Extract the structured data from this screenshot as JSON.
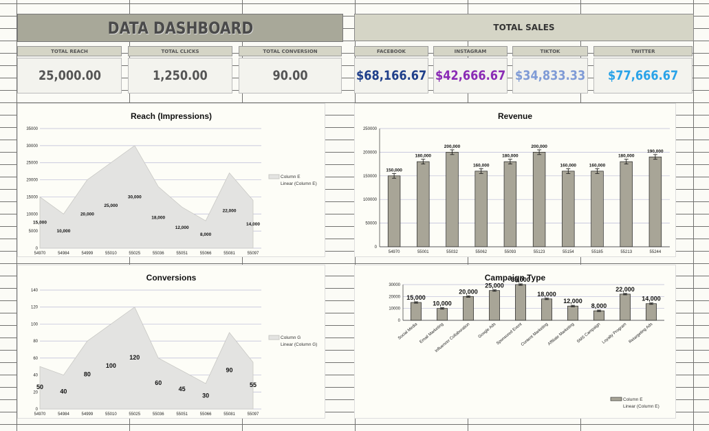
{
  "header": {
    "title": "DATA DASHBOARD",
    "sales_title": "TOTAL SALES"
  },
  "kpis": [
    {
      "label": "TOTAL REACH",
      "value": "25,000.00",
      "color": "#555555"
    },
    {
      "label": "TOTAL CLICKS",
      "value": "1,250.00",
      "color": "#555555"
    },
    {
      "label": "TOTAL CONVERSION",
      "value": "90.00",
      "color": "#555555"
    }
  ],
  "sales": [
    {
      "label": "FACEBOOK",
      "value": "$68,166.67",
      "color": "#1f3f8a"
    },
    {
      "label": "INSTAGRAM",
      "value": "$42,666.67",
      "color": "#8a2bb5"
    },
    {
      "label": "TIKTOK",
      "value": "$34,833.33",
      "color": "#7f9bd6"
    },
    {
      "label": "TWITTER",
      "value": "$77,666.67",
      "color": "#2aa3e8"
    }
  ],
  "chart_data": [
    {
      "type": "area",
      "title": "Reach (Impressions)",
      "x": [
        "54970",
        "54984",
        "54999",
        "55010",
        "55025",
        "55036",
        "55051",
        "55066",
        "55081",
        "55097"
      ],
      "values": [
        15000,
        10000,
        20000,
        25000,
        30000,
        18000,
        12000,
        8000,
        22000,
        14000
      ],
      "data_labels": [
        "15,000",
        "10,000",
        "20,000",
        "25,000",
        "30,000",
        "18,000",
        "12,000",
        "8,000",
        "22,000",
        "14,000"
      ],
      "ylim": [
        0,
        35000
      ],
      "yticks": [
        "0",
        "5000",
        "10000",
        "15000",
        "20000",
        "25000",
        "30000",
        "35000"
      ],
      "legend": [
        "Column E",
        "Linear (Column E)"
      ],
      "legend_position": "right",
      "grid": true
    },
    {
      "type": "bar",
      "title": "Revenue",
      "categories": [
        "54970",
        "55001",
        "55032",
        "55062",
        "55093",
        "55123",
        "55154",
        "55185",
        "55213",
        "55244"
      ],
      "values": [
        150000,
        180000,
        200000,
        160000,
        180000,
        200000,
        160000,
        160000,
        180000,
        190000
      ],
      "data_labels": [
        "150,000",
        "180,000",
        "200,000",
        "160,000",
        "180,000",
        "200,000",
        "160,000",
        "160,000",
        "180,000",
        "190,000"
      ],
      "ylim": [
        0,
        250000
      ],
      "yticks": [
        "0",
        "50000",
        "100000",
        "150000",
        "200000",
        "250000"
      ],
      "error_bars": true,
      "grid": true
    },
    {
      "type": "area",
      "title": "Conversions",
      "x": [
        "54970",
        "54984",
        "54999",
        "55010",
        "55025",
        "55036",
        "55051",
        "55066",
        "55081",
        "55097"
      ],
      "values": [
        50,
        40,
        80,
        100,
        120,
        60,
        45,
        30,
        90,
        55
      ],
      "data_labels": [
        "50",
        "40",
        "80",
        "100",
        "120",
        "60",
        "45",
        "30",
        "90",
        "55"
      ],
      "ylim": [
        0,
        140
      ],
      "yticks": [
        "0",
        "20",
        "40",
        "60",
        "80",
        "100",
        "120",
        "140"
      ],
      "legend": [
        "Column G",
        "Linear (Column G)"
      ],
      "legend_position": "right",
      "grid": true
    },
    {
      "type": "bar",
      "title": "Campaign Type",
      "categories": [
        "Social Media",
        "Email Marketing",
        "Influencer Collaboration",
        "Google Ads",
        "Sponsored Event",
        "Content Marketing",
        "Affiliate Marketing",
        "SMS Campaign",
        "Loyalty Program",
        "Retargeting Ads"
      ],
      "values": [
        15000,
        10000,
        20000,
        25000,
        30000,
        18000,
        12000,
        8000,
        22000,
        14000
      ],
      "data_labels": [
        "15,000",
        "10,000",
        "20,000",
        "25,000",
        "30,000",
        "18,000",
        "12,000",
        "8,000",
        "22,000",
        "14,000"
      ],
      "ylim": [
        0,
        30000
      ],
      "yticks": [
        "0",
        "10000",
        "20000",
        "30000"
      ],
      "legend": [
        "Column E",
        "Linear (Column E)"
      ],
      "legend_position": "bottom-right",
      "error_bars": true,
      "grid": true
    }
  ],
  "colors": {
    "area_fill": "#e3e3e1",
    "area_stroke": "#c8c8c4",
    "bar_fill": "#a8a597",
    "bar_stroke": "#222222",
    "gridline": "#b9b9d6"
  }
}
